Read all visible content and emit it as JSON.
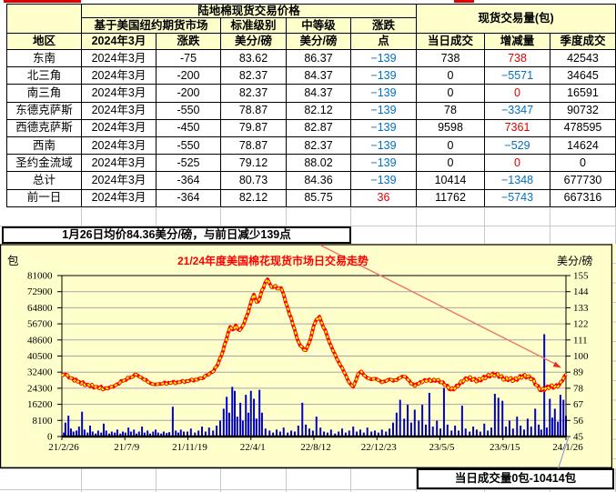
{
  "table": {
    "title": "陆地棉现货交易价格",
    "volume_title": "现货交易量(包)",
    "subheader": {
      "futures_market": "基于美国纽约期货市场",
      "standard_grade": "标准级别",
      "middle_grade": "中等级",
      "change_top": "涨跌",
      "change_bottom": "点"
    },
    "columns": {
      "region": "地区",
      "month": "2024年3月",
      "change": "涨跌",
      "std_unit": "美分/磅",
      "mid_unit": "美分/磅",
      "daily_volume": "当日成交",
      "delta": "增减量",
      "quarter_volume": "季度成交"
    },
    "rows": [
      {
        "region": "东南",
        "month": "2024年3月",
        "change": "-75",
        "std": "83.62",
        "mid": "86.37",
        "points": "−139",
        "points_c": "b",
        "daily": "738",
        "delta": "738",
        "delta_c": "r",
        "quarter": "42543"
      },
      {
        "region": "北三角",
        "month": "2024年3月",
        "change": "-200",
        "std": "82.37",
        "mid": "84.37",
        "points": "−139",
        "points_c": "b",
        "daily": "0",
        "delta": "−5571",
        "delta_c": "b",
        "quarter": "34645"
      },
      {
        "region": "南三角",
        "month": "2024年3月",
        "change": "-200",
        "std": "82.37",
        "mid": "84.37",
        "points": "−139",
        "points_c": "b",
        "daily": "0",
        "delta": "0",
        "delta_c": "r",
        "quarter": "16591"
      },
      {
        "region": "东德克萨斯",
        "month": "2024年3月",
        "change": "-550",
        "std": "78.87",
        "mid": "82.12",
        "points": "−139",
        "points_c": "b",
        "daily": "78",
        "delta": "−3347",
        "delta_c": "b",
        "quarter": "90732"
      },
      {
        "region": "西德克萨斯",
        "month": "2024年3月",
        "change": "-450",
        "std": "79.87",
        "mid": "82.87",
        "points": "−139",
        "points_c": "b",
        "daily": "9598",
        "delta": "7361",
        "delta_c": "r",
        "quarter": "478595"
      },
      {
        "region": "西南",
        "month": "2024年3月",
        "change": "-550",
        "std": "78.87",
        "mid": "82.37",
        "points": "−139",
        "points_c": "b",
        "daily": "0",
        "delta": "−529",
        "delta_c": "b",
        "quarter": "14624"
      },
      {
        "region": "圣约金流域",
        "month": "2024年3月",
        "change": "-525",
        "std": "79.12",
        "mid": "88.02",
        "points": "−139",
        "points_c": "b",
        "daily": "0",
        "delta": "0",
        "delta_c": "r",
        "quarter": "0"
      },
      {
        "region": "总计",
        "month": "2024年3月",
        "change": "-364",
        "std": "80.73",
        "mid": "84.36",
        "points": "−139",
        "points_c": "b",
        "daily": "10414",
        "delta": "−1348",
        "delta_c": "b",
        "quarter": "677730"
      },
      {
        "region": "前一日",
        "month": "2024年3月",
        "change": "-364",
        "std": "82.12",
        "mid": "85.75",
        "points": "36",
        "points_c": "r",
        "daily": "11762",
        "delta": "−5743",
        "delta_c": "b",
        "quarter": "667316"
      }
    ]
  },
  "note": "1月26日均价84.36美分/磅，与前日减少139点",
  "callout": "当日成交量0包-10414包",
  "chart_data": {
    "type": "bar+line",
    "title": "21/24年度美国棉花现货市场日交易走势",
    "left_axis_label": "包",
    "right_axis_label": "美分/磅",
    "left_ticks": [
      81000,
      72900,
      64800,
      56700,
      48600,
      40500,
      32400,
      24300,
      16200,
      8100,
      0
    ],
    "right_ticks": [
      155,
      144,
      133,
      122,
      111,
      100,
      89,
      78,
      67,
      56,
      45
    ],
    "x_ticks": [
      "21/2/26",
      "21/7/9",
      "21/11/19",
      "22/4/1",
      "22/8/12",
      "22/12/23",
      "23/5/5",
      "23/9/15",
      "24/1/26"
    ],
    "left_range": [
      0,
      81000
    ],
    "right_range": [
      45,
      155
    ],
    "colors": {
      "bar": "#0000CC",
      "line": "#FF0000",
      "marker": "#FFFF00",
      "title": "#FF0000",
      "arrow": "#EE7766",
      "leader": "#9999E0"
    },
    "price_line": [
      [
        0,
        86.5
      ],
      [
        0.7,
        87.5
      ],
      [
        1.8,
        85
      ],
      [
        3.1,
        82.5
      ],
      [
        4.9,
        80.5
      ],
      [
        6.7,
        79
      ],
      [
        8.5,
        77.8
      ],
      [
        9.4,
        78.5
      ],
      [
        10.6,
        80
      ],
      [
        12.1,
        83
      ],
      [
        13.4,
        85
      ],
      [
        14.8,
        87.3
      ],
      [
        15.7,
        85.5
      ],
      [
        17,
        82.5
      ],
      [
        18.1,
        80.8
      ],
      [
        19.3,
        81
      ],
      [
        21.1,
        81.8
      ],
      [
        22.9,
        82.2
      ],
      [
        24.7,
        83
      ],
      [
        26.5,
        84
      ],
      [
        27.8,
        84.8
      ],
      [
        28.7,
        87
      ],
      [
        29.8,
        89
      ],
      [
        30.7,
        93
      ],
      [
        31.6,
        100
      ],
      [
        32.3,
        108
      ],
      [
        32.9,
        115
      ],
      [
        33.4,
        120
      ],
      [
        33.9,
        118
      ],
      [
        34.5,
        121
      ],
      [
        35,
        118
      ],
      [
        35.6,
        119
      ],
      [
        36.1,
        122
      ],
      [
        36.6,
        127
      ],
      [
        37.2,
        133
      ],
      [
        37.7,
        139
      ],
      [
        38.1,
        142
      ],
      [
        38.6,
        137
      ],
      [
        39.2,
        139
      ],
      [
        39.7,
        145
      ],
      [
        40.3,
        150
      ],
      [
        40.8,
        152.5
      ],
      [
        41.3,
        149
      ],
      [
        41.9,
        147
      ],
      [
        42.4,
        148
      ],
      [
        43,
        146
      ],
      [
        43.5,
        146.5
      ],
      [
        44,
        142
      ],
      [
        44.8,
        133
      ],
      [
        45.5,
        126
      ],
      [
        46.2,
        118
      ],
      [
        46.9,
        110
      ],
      [
        47.7,
        106
      ],
      [
        48.4,
        104
      ],
      [
        48.9,
        108
      ],
      [
        49.5,
        114
      ],
      [
        50,
        121
      ],
      [
        50.5,
        125
      ],
      [
        51.1,
        127
      ],
      [
        51.6,
        122
      ],
      [
        52.2,
        118
      ],
      [
        52.7,
        113
      ],
      [
        53.4,
        107
      ],
      [
        54.2,
        101
      ],
      [
        54.9,
        96
      ],
      [
        55.6,
        92
      ],
      [
        56.3,
        87
      ],
      [
        57,
        82
      ],
      [
        57.8,
        79
      ],
      [
        58.3,
        83
      ],
      [
        58.8,
        88
      ],
      [
        59.4,
        89.5
      ],
      [
        59.9,
        87
      ],
      [
        60.6,
        85
      ],
      [
        61.4,
        84
      ],
      [
        62.1,
        84.5
      ],
      [
        62.8,
        83.5
      ],
      [
        63.5,
        82
      ],
      [
        64.3,
        82.8
      ],
      [
        65,
        84
      ],
      [
        65.7,
        83
      ],
      [
        66.4,
        83.5
      ],
      [
        67.1,
        85
      ],
      [
        67.9,
        86
      ],
      [
        68.6,
        84
      ],
      [
        69.3,
        81
      ],
      [
        70,
        79.5
      ],
      [
        70.8,
        81
      ],
      [
        71.7,
        82.8
      ],
      [
        72.6,
        83.5
      ],
      [
        73.5,
        83
      ],
      [
        74.4,
        83.5
      ],
      [
        75.3,
        82
      ],
      [
        76.2,
        80
      ],
      [
        77.1,
        77
      ],
      [
        78,
        78
      ],
      [
        78.9,
        81
      ],
      [
        79.8,
        83.5
      ],
      [
        80.7,
        85
      ],
      [
        81.6,
        84
      ],
      [
        82.5,
        83
      ],
      [
        83.4,
        84.5
      ],
      [
        84.3,
        86
      ],
      [
        85.2,
        87
      ],
      [
        86.1,
        87.5
      ],
      [
        87,
        86
      ],
      [
        87.9,
        84
      ],
      [
        88.8,
        84.5
      ],
      [
        89.7,
        83.5
      ],
      [
        90.6,
        85
      ],
      [
        91.5,
        86.5
      ],
      [
        92.4,
        86
      ],
      [
        93.3,
        84.5
      ],
      [
        94.2,
        80
      ],
      [
        95.1,
        76.5
      ],
      [
        96,
        78
      ],
      [
        96.9,
        79.5
      ],
      [
        97.8,
        79
      ],
      [
        98.7,
        80.5
      ],
      [
        99.3,
        83
      ],
      [
        100,
        87.5
      ]
    ],
    "volume_bars": [
      [
        0.4,
        2000
      ],
      [
        0.7,
        7000
      ],
      [
        1.3,
        10500
      ],
      [
        1.8,
        4000
      ],
      [
        2.3,
        2500
      ],
      [
        2.9,
        3000
      ],
      [
        3.4,
        5000
      ],
      [
        4,
        12500
      ],
      [
        4.5,
        3500
      ],
      [
        5.1,
        2000
      ],
      [
        5.6,
        5500
      ],
      [
        6.1,
        2500
      ],
      [
        6.7,
        1500
      ],
      [
        7.2,
        3000
      ],
      [
        7.8,
        2000
      ],
      [
        8.3,
        6500
      ],
      [
        8.8,
        3000
      ],
      [
        9.4,
        1500
      ],
      [
        9.9,
        2500
      ],
      [
        10.5,
        2000
      ],
      [
        11,
        3500
      ],
      [
        11.6,
        1500
      ],
      [
        12.1,
        2500
      ],
      [
        12.6,
        2000
      ],
      [
        13.2,
        4500
      ],
      [
        13.7,
        2500
      ],
      [
        14.3,
        3500
      ],
      [
        14.8,
        1500
      ],
      [
        15.3,
        2500
      ],
      [
        15.9,
        5000
      ],
      [
        16.4,
        2000
      ],
      [
        17,
        3000
      ],
      [
        17.5,
        1500
      ],
      [
        18.1,
        2500
      ],
      [
        18.6,
        3500
      ],
      [
        19.1,
        2000
      ],
      [
        19.7,
        1500
      ],
      [
        20.2,
        2500
      ],
      [
        20.8,
        1800
      ],
      [
        21.3,
        2200
      ],
      [
        22,
        15000
      ],
      [
        22.6,
        3000
      ],
      [
        23.1,
        2000
      ],
      [
        23.6,
        3500
      ],
      [
        24.2,
        2500
      ],
      [
        24.9,
        2500
      ],
      [
        25.6,
        4000
      ],
      [
        26.4,
        2000
      ],
      [
        27.1,
        3000
      ],
      [
        27.8,
        5000
      ],
      [
        28.5,
        2500
      ],
      [
        29.2,
        4500
      ],
      [
        30,
        3000
      ],
      [
        30.7,
        5500
      ],
      [
        31.4,
        8000
      ],
      [
        32.1,
        14000
      ],
      [
        32.7,
        20000
      ],
      [
        33.2,
        12000
      ],
      [
        33.8,
        25000
      ],
      [
        34.3,
        23000
      ],
      [
        34.8,
        10000
      ],
      [
        35.4,
        17000
      ],
      [
        35.9,
        8000
      ],
      [
        36.5,
        21000
      ],
      [
        37,
        12000
      ],
      [
        37.5,
        23000
      ],
      [
        38.1,
        19000
      ],
      [
        38.6,
        9000
      ],
      [
        39.2,
        23500
      ],
      [
        39.7,
        12000
      ],
      [
        40.4,
        4000
      ],
      [
        41.2,
        3000
      ],
      [
        41.9,
        2000
      ],
      [
        42.6,
        3500
      ],
      [
        43.3,
        2500
      ],
      [
        44,
        4500
      ],
      [
        44.8,
        2000
      ],
      [
        45.5,
        3000
      ],
      [
        46.2,
        2500
      ],
      [
        46.9,
        5500
      ],
      [
        47.7,
        17000
      ],
      [
        48.4,
        6000
      ],
      [
        49.1,
        4000
      ],
      [
        49.8,
        3000
      ],
      [
        50.5,
        10000
      ],
      [
        51.3,
        4500
      ],
      [
        52,
        2500
      ],
      [
        52.7,
        2000
      ],
      [
        53.4,
        3500
      ],
      [
        54.2,
        1500
      ],
      [
        54.9,
        2500
      ],
      [
        55.6,
        4000
      ],
      [
        56.3,
        2000
      ],
      [
        57,
        3000
      ],
      [
        57.8,
        5000
      ],
      [
        58.5,
        2500
      ],
      [
        59.2,
        3500
      ],
      [
        59.9,
        2000
      ],
      [
        60.6,
        4500
      ],
      [
        61.4,
        2500
      ],
      [
        62.1,
        3000
      ],
      [
        62.8,
        2000
      ],
      [
        63.5,
        3500
      ],
      [
        64.3,
        2500
      ],
      [
        65,
        4000
      ],
      [
        65.7,
        7000
      ],
      [
        66.4,
        12000
      ],
      [
        67.1,
        18500
      ],
      [
        67.9,
        9000
      ],
      [
        68.6,
        16000
      ],
      [
        69.3,
        7000
      ],
      [
        70,
        13500
      ],
      [
        70.8,
        8000
      ],
      [
        71.5,
        16000
      ],
      [
        72.2,
        6000
      ],
      [
        72.9,
        22000
      ],
      [
        73.6,
        5000
      ],
      [
        74.4,
        8000
      ],
      [
        75.1,
        4000
      ],
      [
        75.8,
        24500
      ],
      [
        76.5,
        6000
      ],
      [
        77.3,
        3000
      ],
      [
        78,
        5500
      ],
      [
        78.7,
        3000
      ],
      [
        79.4,
        15500
      ],
      [
        80.1,
        4000
      ],
      [
        80.9,
        2500
      ],
      [
        81.6,
        5000
      ],
      [
        82.3,
        3500
      ],
      [
        83,
        2500
      ],
      [
        83.8,
        6500
      ],
      [
        84.5,
        3000
      ],
      [
        85.2,
        4500
      ],
      [
        85.9,
        21500
      ],
      [
        86.6,
        19500
      ],
      [
        87.4,
        18000
      ],
      [
        88.1,
        5000
      ],
      [
        88.8,
        8000
      ],
      [
        89.5,
        4000
      ],
      [
        90.3,
        10000
      ],
      [
        91,
        5500
      ],
      [
        91.7,
        3500
      ],
      [
        92.4,
        9000
      ],
      [
        93.1,
        5000
      ],
      [
        93.9,
        14000
      ],
      [
        94.6,
        6000
      ],
      [
        95.1,
        3500
      ],
      [
        95.7,
        51500
      ],
      [
        96.2,
        4500
      ],
      [
        96.8,
        19000
      ],
      [
        97.3,
        9500
      ],
      [
        97.8,
        14000
      ],
      [
        98.4,
        7500
      ],
      [
        98.9,
        21000
      ],
      [
        99.5,
        18500
      ],
      [
        100,
        10414
      ]
    ]
  }
}
